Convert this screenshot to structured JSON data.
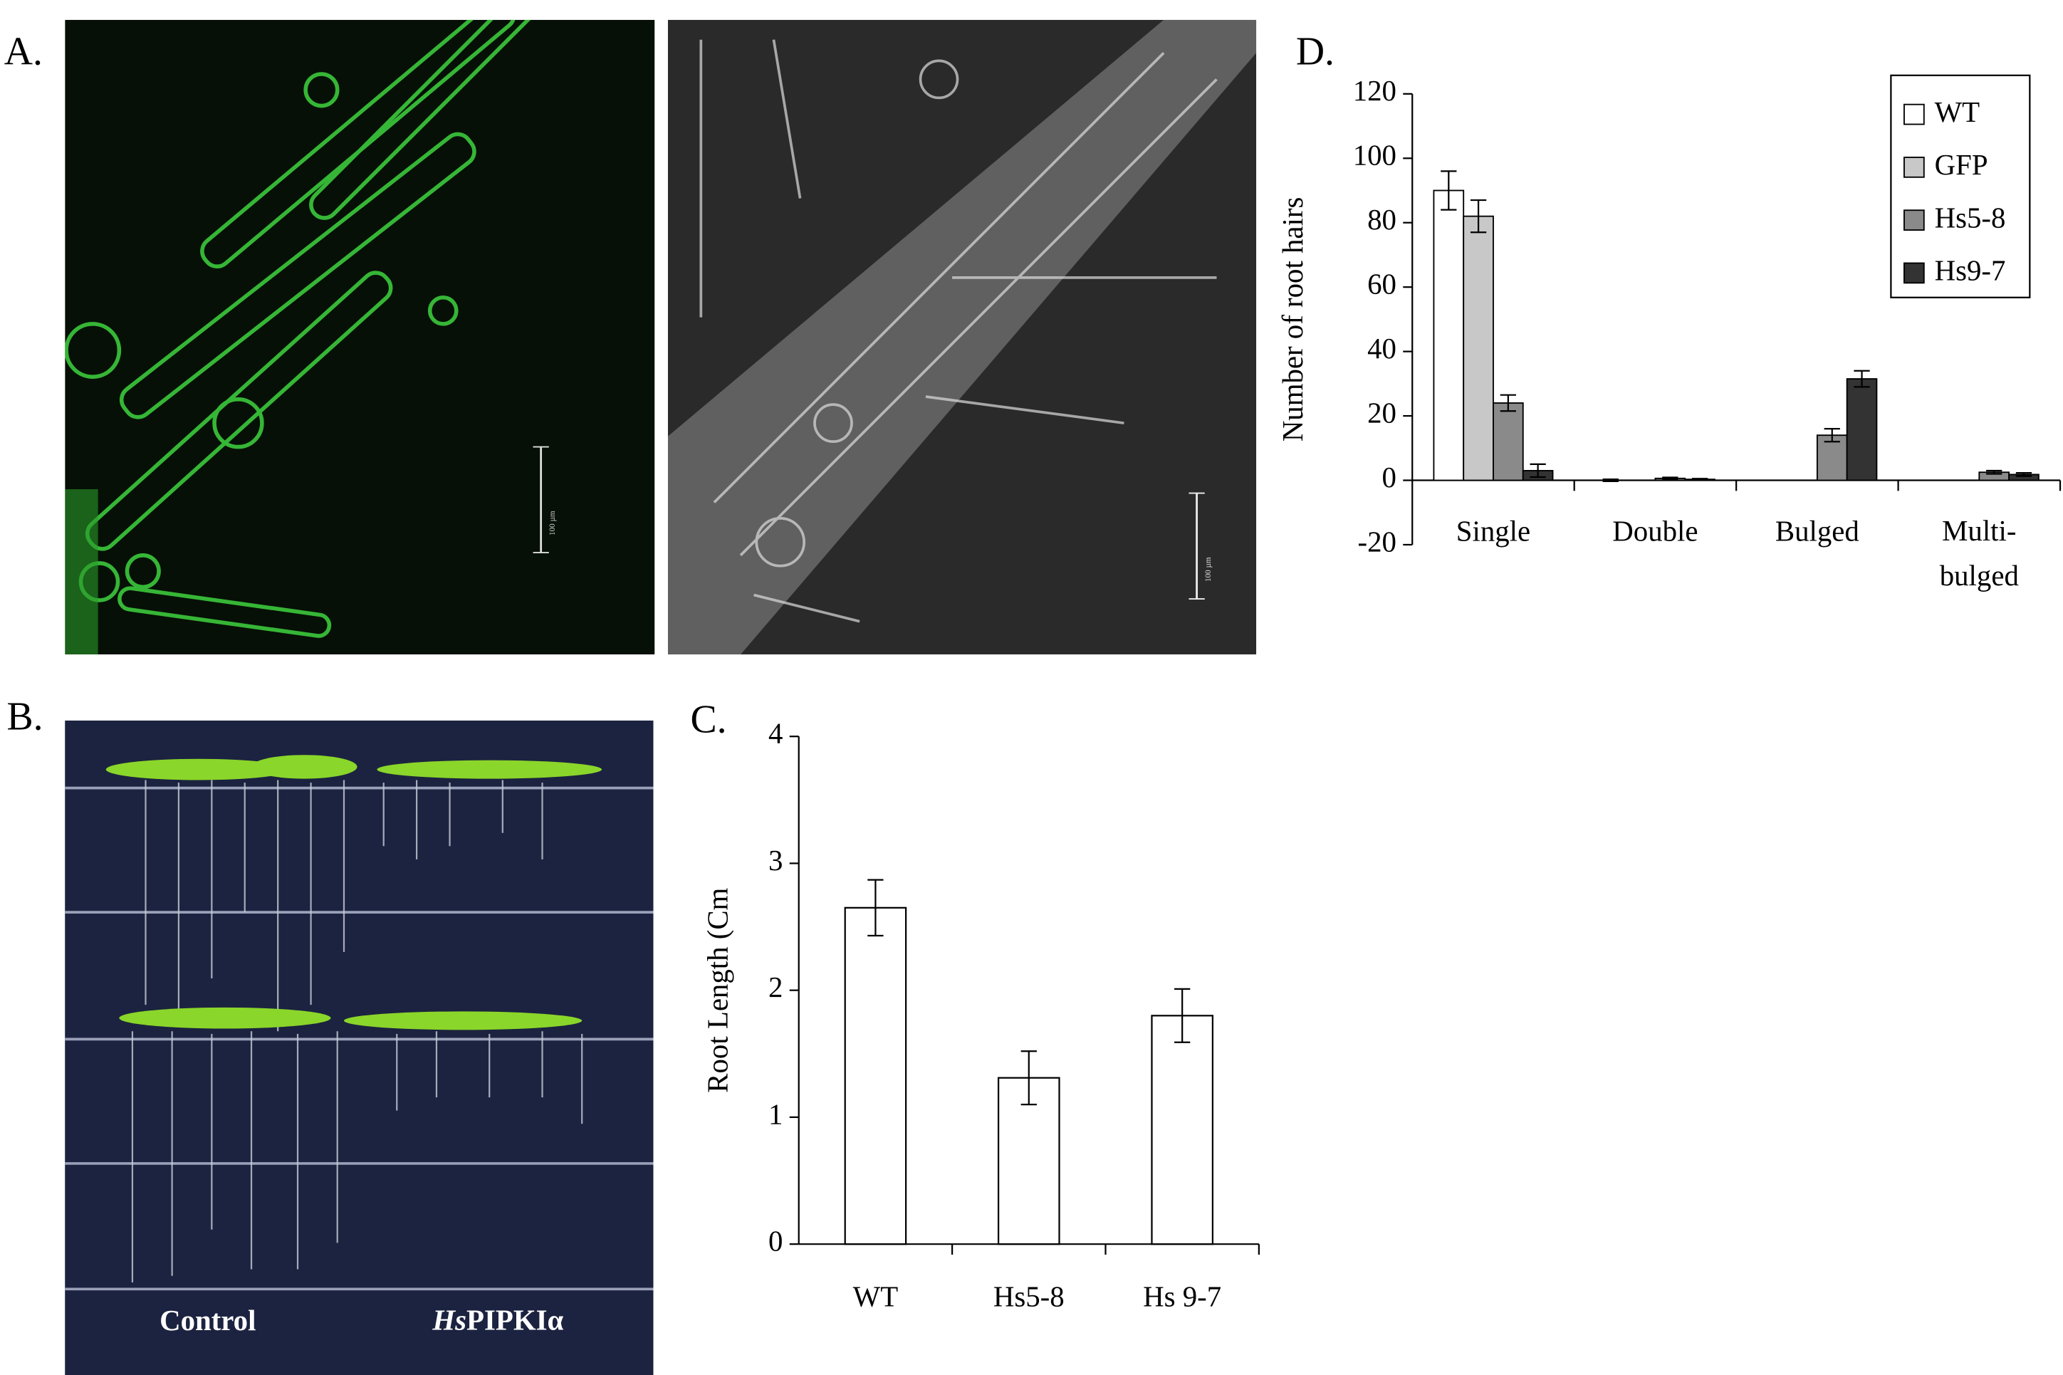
{
  "panels": {
    "A": {
      "label": "A.",
      "scale_label": "100 µm"
    },
    "B": {
      "label": "B.",
      "control": "Control",
      "treated_italic": "Hs",
      "treated_rest": "PIPKIα"
    },
    "C": {
      "label": "C."
    },
    "D": {
      "label": "D."
    }
  },
  "chart_data": [
    {
      "type": "bar",
      "ylabel": "Root Length (Cm",
      "categories": [
        "WT",
        "Hs5-8",
        "Hs 9-7"
      ],
      "values": [
        2.65,
        1.31,
        1.8
      ],
      "errors": [
        0.22,
        0.21,
        0.21
      ],
      "color": "#ffffff",
      "ylim": [
        0,
        4
      ],
      "yticks": [
        0,
        1,
        2,
        3,
        4
      ]
    },
    {
      "type": "grouped_bar",
      "ylabel": "Number of root hairs",
      "categories": [
        "Single",
        "Double",
        "Bulged",
        "Multi-\nbulged"
      ],
      "series": [
        {
          "name": "WT",
          "color": "#ffffff",
          "values": [
            90,
            0,
            0,
            0
          ],
          "errors": [
            6,
            0.3,
            0,
            0
          ]
        },
        {
          "name": "GFP",
          "color": "#c8c8c8",
          "values": [
            82,
            0,
            0,
            0
          ],
          "errors": [
            5,
            0,
            0,
            0
          ]
        },
        {
          "name": "Hs5-8",
          "color": "#8a8a8a",
          "values": [
            24,
            0.6,
            14,
            2.5
          ],
          "errors": [
            2.5,
            0.3,
            2,
            0.5
          ]
        },
        {
          "name": "Hs9-7",
          "color": "#333333",
          "values": [
            3,
            0.3,
            31.5,
            1.8
          ],
          "errors": [
            2,
            0.2,
            2.5,
            0.5
          ]
        }
      ],
      "ylim": [
        -20,
        120
      ],
      "yticks": [
        -20,
        0,
        20,
        40,
        60,
        80,
        100,
        120
      ],
      "legend": "upper right"
    }
  ]
}
